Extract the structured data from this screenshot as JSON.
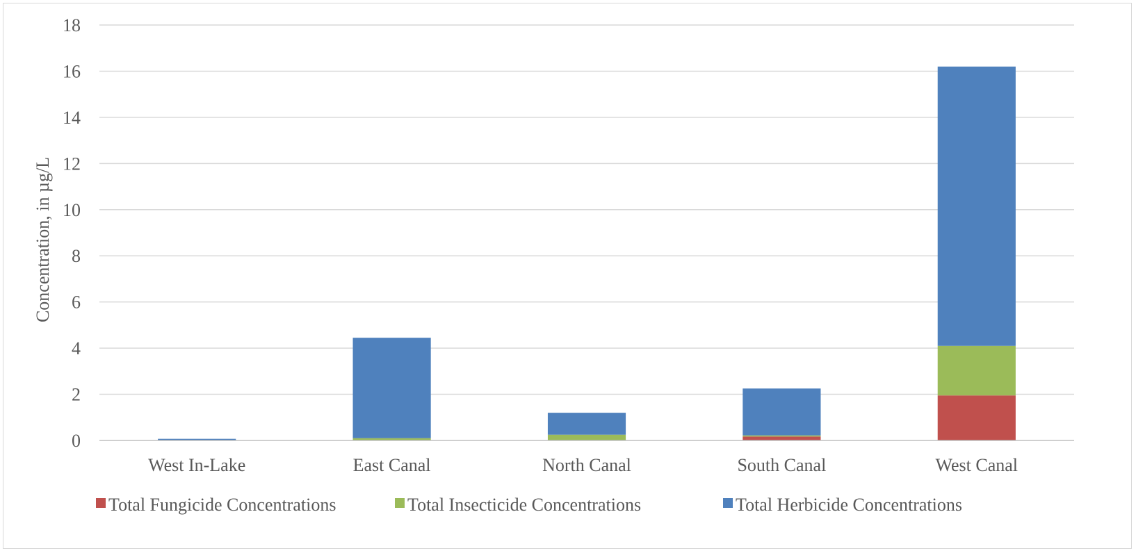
{
  "chart_data": {
    "type": "bar",
    "stacked": true,
    "title": "",
    "xlabel": "",
    "ylabel": "Concentration, in µg/L",
    "ylim": [
      0,
      18
    ],
    "yticks": [
      0,
      2,
      4,
      6,
      8,
      10,
      12,
      14,
      16,
      18
    ],
    "grid": true,
    "legend_position": "bottom",
    "categories": [
      "West In-Lake",
      "East Canal",
      "North Canal",
      "South Canal",
      "West Canal"
    ],
    "series": [
      {
        "name": "Total Fungicide Concentrations",
        "color": "#c0504d",
        "values": [
          0,
          0,
          0,
          0.17,
          1.95
        ]
      },
      {
        "name": "Total Insecticide Concentrations",
        "color": "#9bbb59",
        "values": [
          0,
          0.1,
          0.25,
          0.05,
          2.15
        ]
      },
      {
        "name": "Total Herbicide Concentrations",
        "color": "#4f81bd",
        "values": [
          0.07,
          4.35,
          0.95,
          2.03,
          12.1
        ]
      }
    ]
  }
}
